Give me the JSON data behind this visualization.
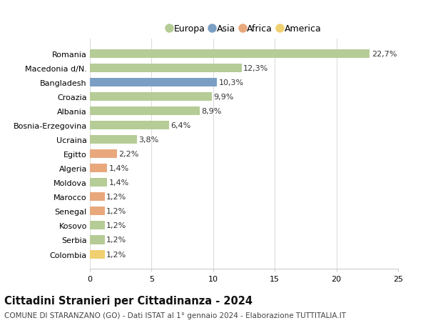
{
  "countries": [
    "Romania",
    "Macedonia d/N.",
    "Bangladesh",
    "Croazia",
    "Albania",
    "Bosnia-Erzegovina",
    "Ucraina",
    "Egitto",
    "Algeria",
    "Moldova",
    "Marocco",
    "Senegal",
    "Kosovo",
    "Serbia",
    "Colombia"
  ],
  "values": [
    22.7,
    12.3,
    10.3,
    9.9,
    8.9,
    6.4,
    3.8,
    2.2,
    1.4,
    1.4,
    1.2,
    1.2,
    1.2,
    1.2,
    1.2
  ],
  "labels": [
    "22,7%",
    "12,3%",
    "10,3%",
    "9,9%",
    "8,9%",
    "6,4%",
    "3,8%",
    "2,2%",
    "1,4%",
    "1,4%",
    "1,2%",
    "1,2%",
    "1,2%",
    "1,2%",
    "1,2%"
  ],
  "continents": [
    "Europa",
    "Europa",
    "Asia",
    "Europa",
    "Europa",
    "Europa",
    "Europa",
    "Africa",
    "Africa",
    "Europa",
    "Africa",
    "Africa",
    "Europa",
    "Europa",
    "America"
  ],
  "colors": {
    "Europa": "#b5cc96",
    "Asia": "#7b9fc4",
    "Africa": "#e8a87c",
    "America": "#f0d070"
  },
  "xlim": [
    0,
    25
  ],
  "xticks": [
    0,
    5,
    10,
    15,
    20,
    25
  ],
  "title": "Cittadini Stranieri per Cittadinanza - 2024",
  "subtitle": "COMUNE DI STARANZANO (GO) - Dati ISTAT al 1° gennaio 2024 - Elaborazione TUTTITALIA.IT",
  "background_color": "#ffffff",
  "grid_color": "#dddddd",
  "bar_height": 0.6,
  "label_fontsize": 8,
  "tick_fontsize": 8,
  "title_fontsize": 10.5,
  "subtitle_fontsize": 7.5
}
